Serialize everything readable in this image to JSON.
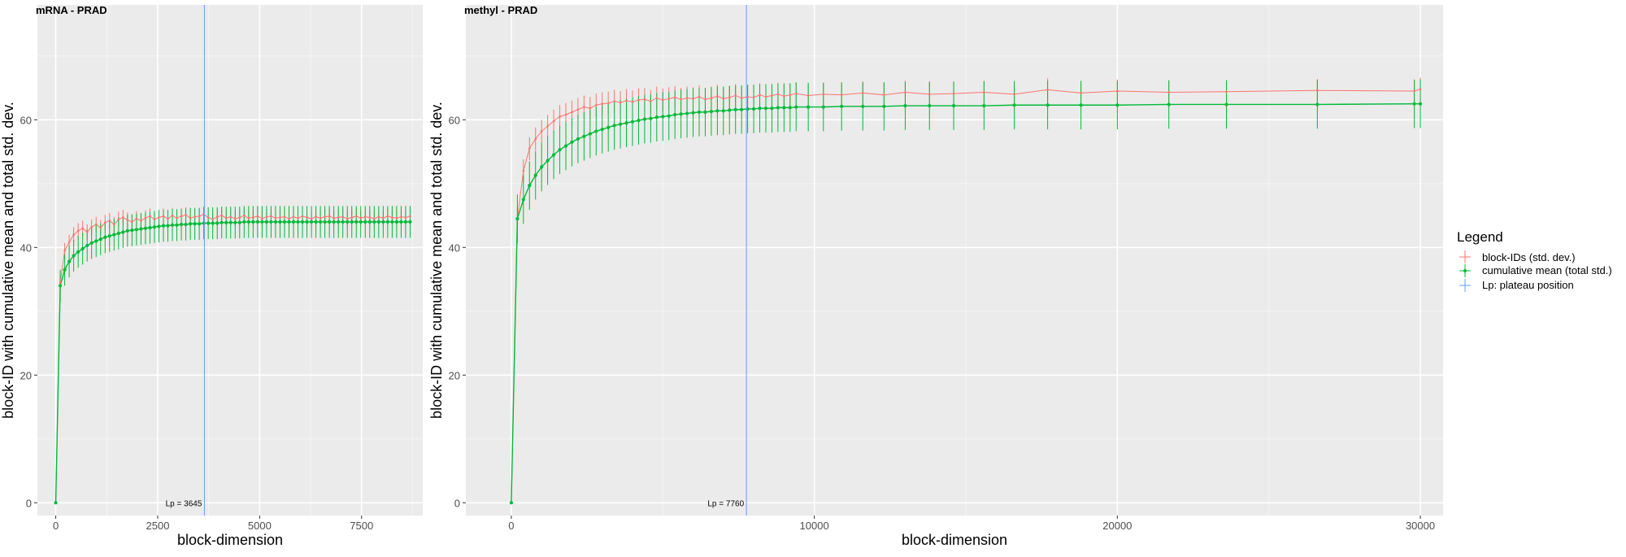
{
  "legend": {
    "title": "Legend",
    "items": [
      {
        "label": "block-IDs (std. dev.)",
        "color": "#F8766D"
      },
      {
        "label": "cumulative mean (total std.)",
        "color": "#00BA38"
      },
      {
        "label": "Lp: plateau position",
        "color": "#619CFF"
      }
    ]
  },
  "chart_data": [
    {
      "type": "line",
      "title": "mRNA - PRAD",
      "xlabel": "block-dimension",
      "ylabel": "block-ID with cumulative mean and total std. dev.",
      "xlim": [
        -450,
        9000
      ],
      "ylim": [
        -2,
        78
      ],
      "x_ticks": [
        0,
        2500,
        5000,
        7500
      ],
      "x_tick_labels": [
        "0",
        "2500",
        "5000",
        "7500"
      ],
      "y_ticks": [
        0,
        20,
        40,
        60
      ],
      "y_tick_labels": [
        "0",
        "20",
        "40",
        "60"
      ],
      "grid": true,
      "plateau": {
        "x": 3645,
        "label": "Lp = 3645"
      },
      "series": [
        {
          "name": "block-IDs (std. dev.)",
          "x": [
            0,
            110,
            220,
            330,
            440,
            550,
            660,
            770,
            880,
            990,
            1100,
            1210,
            1320,
            1430,
            1540,
            1650,
            1760,
            1870,
            1980,
            2090,
            2200,
            2310,
            2420,
            2530,
            2640,
            2750,
            2860,
            2970,
            3080,
            3190,
            3300,
            3410,
            3520,
            3630,
            3740,
            3850,
            3960,
            4070,
            4180,
            4290,
            4400,
            4510,
            4620,
            4730,
            4840,
            4950,
            5060,
            5170,
            5280,
            5390,
            5500,
            5610,
            5720,
            5830,
            5940,
            6050,
            6160,
            6270,
            6380,
            6490,
            6600,
            6710,
            6820,
            6930,
            7040,
            7150,
            7260,
            7370,
            7480,
            7590,
            7700,
            7810,
            7920,
            8030,
            8140,
            8250,
            8360,
            8470,
            8580,
            8690
          ],
          "values": [
            0,
            34.5,
            39.5,
            40.8,
            42.0,
            42.6,
            43.0,
            42.4,
            43.2,
            43.6,
            43.1,
            43.9,
            44.2,
            43.6,
            44.4,
            44.7,
            44.3,
            44.0,
            44.5,
            44.2,
            44.6,
            44.9,
            44.4,
            44.7,
            44.9,
            44.5,
            45.0,
            44.6,
            44.9,
            45.1,
            44.6,
            44.8,
            44.9,
            45.2,
            44.7,
            44.4,
            44.8,
            45.0,
            44.6,
            44.8,
            44.5,
            44.7,
            45.0,
            44.6,
            44.7,
            44.9,
            44.5,
            44.8,
            44.9,
            44.6,
            44.7,
            44.8,
            44.5,
            44.8,
            44.6,
            44.9,
            44.7,
            44.5,
            44.8,
            44.6,
            44.8,
            44.9,
            44.6,
            44.7,
            44.8,
            44.5,
            44.7,
            44.9,
            44.6,
            44.8,
            44.7,
            44.5,
            44.8,
            44.6,
            44.9,
            44.7,
            44.6,
            44.8,
            44.7,
            44.9
          ],
          "error": 1.2
        },
        {
          "name": "cumulative mean (total std.)",
          "x": [
            0,
            110,
            220,
            330,
            440,
            550,
            660,
            770,
            880,
            990,
            1100,
            1210,
            1320,
            1430,
            1540,
            1650,
            1760,
            1870,
            1980,
            2090,
            2200,
            2310,
            2420,
            2530,
            2640,
            2750,
            2860,
            2970,
            3080,
            3190,
            3300,
            3410,
            3520,
            3630,
            3740,
            3850,
            3960,
            4070,
            4180,
            4290,
            4400,
            4510,
            4620,
            4730,
            4840,
            4950,
            5060,
            5170,
            5280,
            5390,
            5500,
            5610,
            5720,
            5830,
            5940,
            6050,
            6160,
            6270,
            6380,
            6490,
            6600,
            6710,
            6820,
            6930,
            7040,
            7150,
            7260,
            7370,
            7480,
            7590,
            7700,
            7810,
            7920,
            8030,
            8140,
            8250,
            8360,
            8470,
            8580,
            8690
          ],
          "values": [
            0,
            34.0,
            36.5,
            37.8,
            38.7,
            39.3,
            39.8,
            40.3,
            40.7,
            41.0,
            41.3,
            41.6,
            41.8,
            42.0,
            42.2,
            42.4,
            42.6,
            42.7,
            42.8,
            42.9,
            43.0,
            43.1,
            43.2,
            43.3,
            43.4,
            43.4,
            43.5,
            43.5,
            43.6,
            43.6,
            43.7,
            43.7,
            43.7,
            43.8,
            43.8,
            43.8,
            43.8,
            43.9,
            43.9,
            43.9,
            43.9,
            43.9,
            44.0,
            44.0,
            44.0,
            44.0,
            44.0,
            44.0,
            44.0,
            44.0,
            44.0,
            44.0,
            44.0,
            44.0,
            44.0,
            44.0,
            44.0,
            44.0,
            44.0,
            44.0,
            44.0,
            44.0,
            44.0,
            44.0,
            44.0,
            44.0,
            44.0,
            44.0,
            44.0,
            44.0,
            44.0,
            44.0,
            44.0,
            44.0,
            44.0,
            44.0,
            44.0,
            44.0,
            44.0,
            44.0
          ],
          "error": 2.5
        }
      ]
    },
    {
      "type": "line",
      "title": "methyl - PRAD",
      "xlabel": "block-dimension",
      "ylabel": "block-ID with cumulative mean and total std. dev.",
      "xlim": [
        -1500,
        30750
      ],
      "ylim": [
        -2,
        78
      ],
      "x_ticks": [
        0,
        10000,
        20000,
        30000
      ],
      "x_tick_labels": [
        "0",
        "10000",
        "20000",
        "30000"
      ],
      "y_ticks": [
        0,
        20,
        40,
        60
      ],
      "y_tick_labels": [
        "0",
        "20",
        "40",
        "60"
      ],
      "grid": true,
      "plateau": {
        "x": 7760,
        "label": "Lp = 7760"
      },
      "series": [
        {
          "name": "block-IDs (std. dev.)",
          "x": [
            0,
            200,
            400,
            600,
            800,
            1000,
            1200,
            1400,
            1600,
            1800,
            2000,
            2200,
            2400,
            2600,
            2800,
            3000,
            3200,
            3400,
            3600,
            3800,
            4000,
            4200,
            4400,
            4600,
            4800,
            5000,
            5200,
            5400,
            5600,
            5800,
            6000,
            6200,
            6400,
            6600,
            6800,
            7000,
            7200,
            7400,
            7600,
            7800,
            8000,
            8200,
            8400,
            8600,
            8800,
            9000,
            9200,
            9400,
            9800,
            10300,
            10900,
            11600,
            12300,
            13000,
            13800,
            14600,
            15600,
            16600,
            17700,
            18800,
            20000,
            21700,
            23600,
            26600,
            29800,
            30000
          ],
          "values": [
            0,
            44.5,
            52.0,
            55.5,
            57.0,
            58.2,
            59.0,
            59.8,
            60.5,
            60.8,
            61.2,
            61.6,
            62.0,
            61.8,
            62.3,
            62.5,
            62.6,
            62.9,
            62.7,
            63.0,
            62.8,
            63.1,
            63.2,
            62.9,
            63.4,
            63.1,
            63.3,
            63.5,
            63.2,
            63.4,
            63.3,
            63.6,
            63.2,
            63.4,
            63.7,
            63.3,
            63.5,
            63.8,
            63.4,
            63.6,
            63.5,
            63.9,
            63.6,
            63.8,
            64.0,
            63.7,
            63.9,
            64.1,
            63.8,
            64.0,
            63.9,
            64.2,
            63.9,
            64.3,
            64.0,
            64.1,
            64.3,
            64.0,
            64.7,
            64.2,
            64.5,
            64.3,
            64.4,
            64.6,
            64.5,
            64.8
          ],
          "error": 1.8
        },
        {
          "name": "cumulative mean (total std.)",
          "x": [
            0,
            200,
            400,
            600,
            800,
            1000,
            1200,
            1400,
            1600,
            1800,
            2000,
            2200,
            2400,
            2600,
            2800,
            3000,
            3200,
            3400,
            3600,
            3800,
            4000,
            4200,
            4400,
            4600,
            4800,
            5000,
            5200,
            5400,
            5600,
            5800,
            6000,
            6200,
            6400,
            6600,
            6800,
            7000,
            7200,
            7400,
            7600,
            7800,
            8000,
            8200,
            8400,
            8600,
            8800,
            9000,
            9200,
            9400,
            9800,
            10300,
            10900,
            11600,
            12300,
            13000,
            13800,
            14600,
            15600,
            16600,
            17700,
            18800,
            20000,
            21700,
            23600,
            26600,
            29800,
            30000
          ],
          "values": [
            0,
            44.5,
            47.5,
            49.7,
            51.3,
            52.6,
            53.6,
            54.5,
            55.3,
            55.9,
            56.5,
            57.0,
            57.4,
            57.8,
            58.2,
            58.5,
            58.8,
            59.1,
            59.3,
            59.5,
            59.7,
            59.9,
            60.1,
            60.2,
            60.4,
            60.5,
            60.6,
            60.8,
            60.9,
            61.0,
            61.1,
            61.2,
            61.2,
            61.3,
            61.4,
            61.4,
            61.5,
            61.6,
            61.6,
            61.7,
            61.7,
            61.8,
            61.8,
            61.8,
            61.9,
            61.9,
            61.9,
            62.0,
            62.0,
            62.0,
            62.1,
            62.1,
            62.1,
            62.2,
            62.2,
            62.2,
            62.2,
            62.3,
            62.3,
            62.3,
            62.3,
            62.4,
            62.4,
            62.4,
            62.5,
            62.5
          ],
          "error": 3.8
        }
      ]
    }
  ]
}
